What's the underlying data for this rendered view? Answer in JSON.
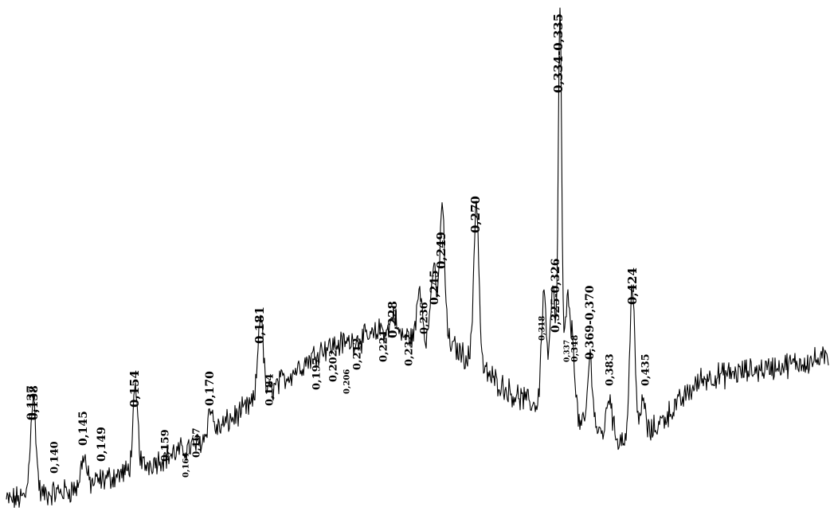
{
  "chart_data": {
    "type": "line",
    "title": "",
    "xlabel": "",
    "ylabel": "",
    "x_direction": "descending_left_to_right",
    "grid": false,
    "legend": "none",
    "line_color": "#000000",
    "series": [
      {
        "points": [
          [
            "0,137",
            0.14
          ],
          [
            "0,138",
            0.15
          ],
          [
            "0,140",
            0.03
          ],
          [
            "0,145",
            0.12
          ],
          [
            "0,149",
            0.07
          ],
          [
            "0,154",
            0.24
          ],
          [
            "0,159",
            0.05
          ],
          [
            "0,164",
            0.03
          ],
          [
            "0,167",
            0.08
          ],
          [
            "0,170",
            0.21
          ],
          [
            "0,181",
            0.4
          ],
          [
            "0,184",
            0.23
          ],
          [
            "0,197",
            0.31
          ],
          [
            "0,202",
            0.29
          ],
          [
            "0,206",
            0.26
          ],
          [
            "0,212",
            0.33
          ],
          [
            "0,221",
            0.37
          ],
          [
            "0,228",
            0.4
          ],
          [
            "0,232",
            0.35
          ],
          [
            "0,236",
            0.45
          ],
          [
            "0,245",
            0.49
          ],
          [
            "0,249",
            0.61
          ],
          [
            "0,270",
            0.62
          ],
          [
            "0,318",
            0.44
          ],
          [
            "0,325-0,326",
            0.45
          ],
          [
            "0,334-0,335",
            1.0
          ],
          [
            "0,337",
            0.41
          ],
          [
            "0,348",
            0.33
          ],
          [
            "0,369-0,370",
            0.31
          ],
          [
            "0,383",
            0.24
          ],
          [
            "0,424",
            0.46
          ],
          [
            "0,435",
            0.23
          ]
        ],
        "baseline_profile": [
          0.03,
          0.05,
          0.09,
          0.14,
          0.23,
          0.33,
          0.36,
          0.34,
          0.24,
          0.18,
          0.14,
          0.27,
          0.29,
          0.31
        ]
      }
    ],
    "peak_labels": [
      "0,137",
      "0,138",
      "0,140",
      "0,145",
      "0,149",
      "0,154",
      "0,159",
      "0,164",
      "0,167",
      "0,170",
      "0,181",
      "0,184",
      "0,197",
      "0,202",
      "0,206",
      "0,212",
      "0,221",
      "0,228",
      "0,232",
      "0,236",
      "0,245",
      "0,249",
      "0,270",
      "0,318",
      "0,325-0,326",
      "0,334-0,335",
      "0,337",
      "0,348",
      "0,369-0,370",
      "0,383",
      "0,424",
      "0,435"
    ]
  }
}
